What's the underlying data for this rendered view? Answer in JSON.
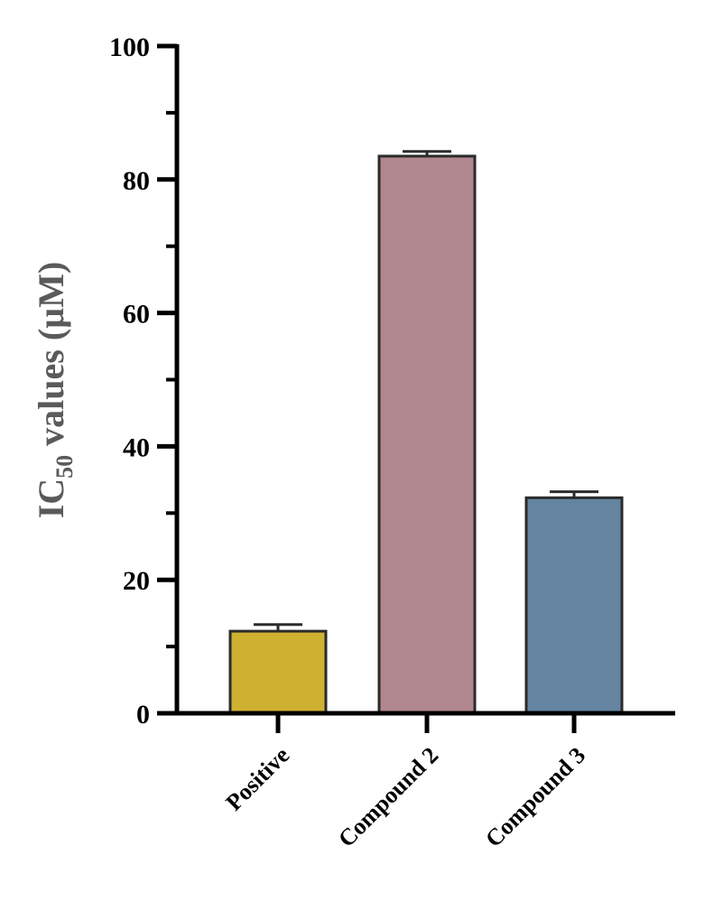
{
  "chart_data": {
    "type": "bar",
    "categories": [
      "Positive",
      "Compound 2",
      "Compound 3"
    ],
    "values": [
      12.3,
      83.5,
      32.3
    ],
    "errors": [
      1.0,
      0.7,
      0.9
    ],
    "colors": [
      "#cfb132",
      "#b0878e",
      "#6484a2"
    ],
    "ylabel_main": "IC",
    "ylabel_sub": "50",
    "ylabel_rest": " values (µM)",
    "ylim": [
      0,
      100
    ],
    "yticks": [
      "0",
      "20",
      "40",
      "60",
      "80",
      "100"
    ],
    "grid": false,
    "legend": "none"
  }
}
